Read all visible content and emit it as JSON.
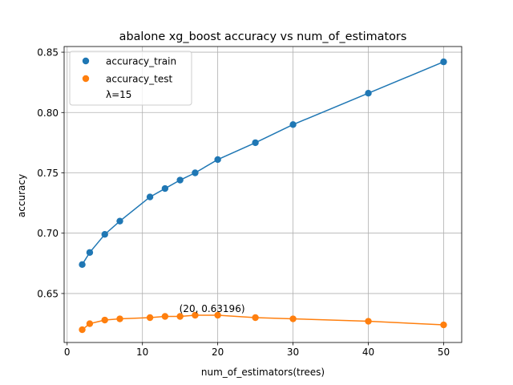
{
  "chart_data": {
    "type": "line",
    "title": "abalone xg_boost accuracy vs num_of_estimators",
    "xlabel": "num_of_estimators(trees)",
    "ylabel": "accuracy",
    "xlim": [
      -0.4,
      52.4
    ],
    "ylim": [
      0.6094,
      0.8547
    ],
    "xticks": [
      0,
      10,
      20,
      30,
      40,
      50
    ],
    "yticks": [
      0.65,
      0.7,
      0.75,
      0.8,
      0.85
    ],
    "ytick_labels": [
      "0.65",
      "0.70",
      "0.75",
      "0.80",
      "0.85"
    ],
    "grid": true,
    "legend_position": "top-left",
    "legend_note": "λ=15",
    "x": [
      2,
      3,
      5,
      7,
      11,
      13,
      15,
      17,
      20,
      25,
      30,
      40,
      50
    ],
    "series": [
      {
        "name": "accuracy_train",
        "color": "#1f77b4",
        "values": [
          0.674,
          0.684,
          0.699,
          0.71,
          0.73,
          0.737,
          0.744,
          0.75,
          0.761,
          0.775,
          0.79,
          0.816,
          0.842
        ]
      },
      {
        "name": "accuracy_test",
        "color": "#ff7f0e",
        "values": [
          0.62,
          0.625,
          0.628,
          0.629,
          0.63,
          0.631,
          0.631,
          0.632,
          0.632,
          0.63,
          0.629,
          0.627,
          0.624
        ]
      }
    ],
    "annotation": {
      "text": "(20, 0.63196)",
      "x": 20,
      "y": 0.63196
    }
  }
}
